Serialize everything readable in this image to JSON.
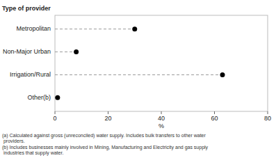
{
  "chart_data": {
    "type": "lollipop",
    "orientation": "horizontal",
    "categories": [
      "Metropolitan",
      "Non-Major Urban",
      "Irrigation/Rural",
      "Other(b)"
    ],
    "values": [
      30,
      8,
      63,
      1
    ],
    "color": "#000000",
    "xlabel": "%",
    "ylabel": "Type of provider",
    "xlim": [
      0,
      80
    ],
    "xticks": [
      0,
      20,
      40,
      60,
      80
    ],
    "grid": false,
    "annotations": [
      "(a) Calculated against gross (unreconciled) water supply. Includes bulk transfers to other water\n providers.",
      "(b) Includes businesses mainly involved in Mining, Manufacturing and Electricity and gas supply\n industries that supply water."
    ]
  }
}
